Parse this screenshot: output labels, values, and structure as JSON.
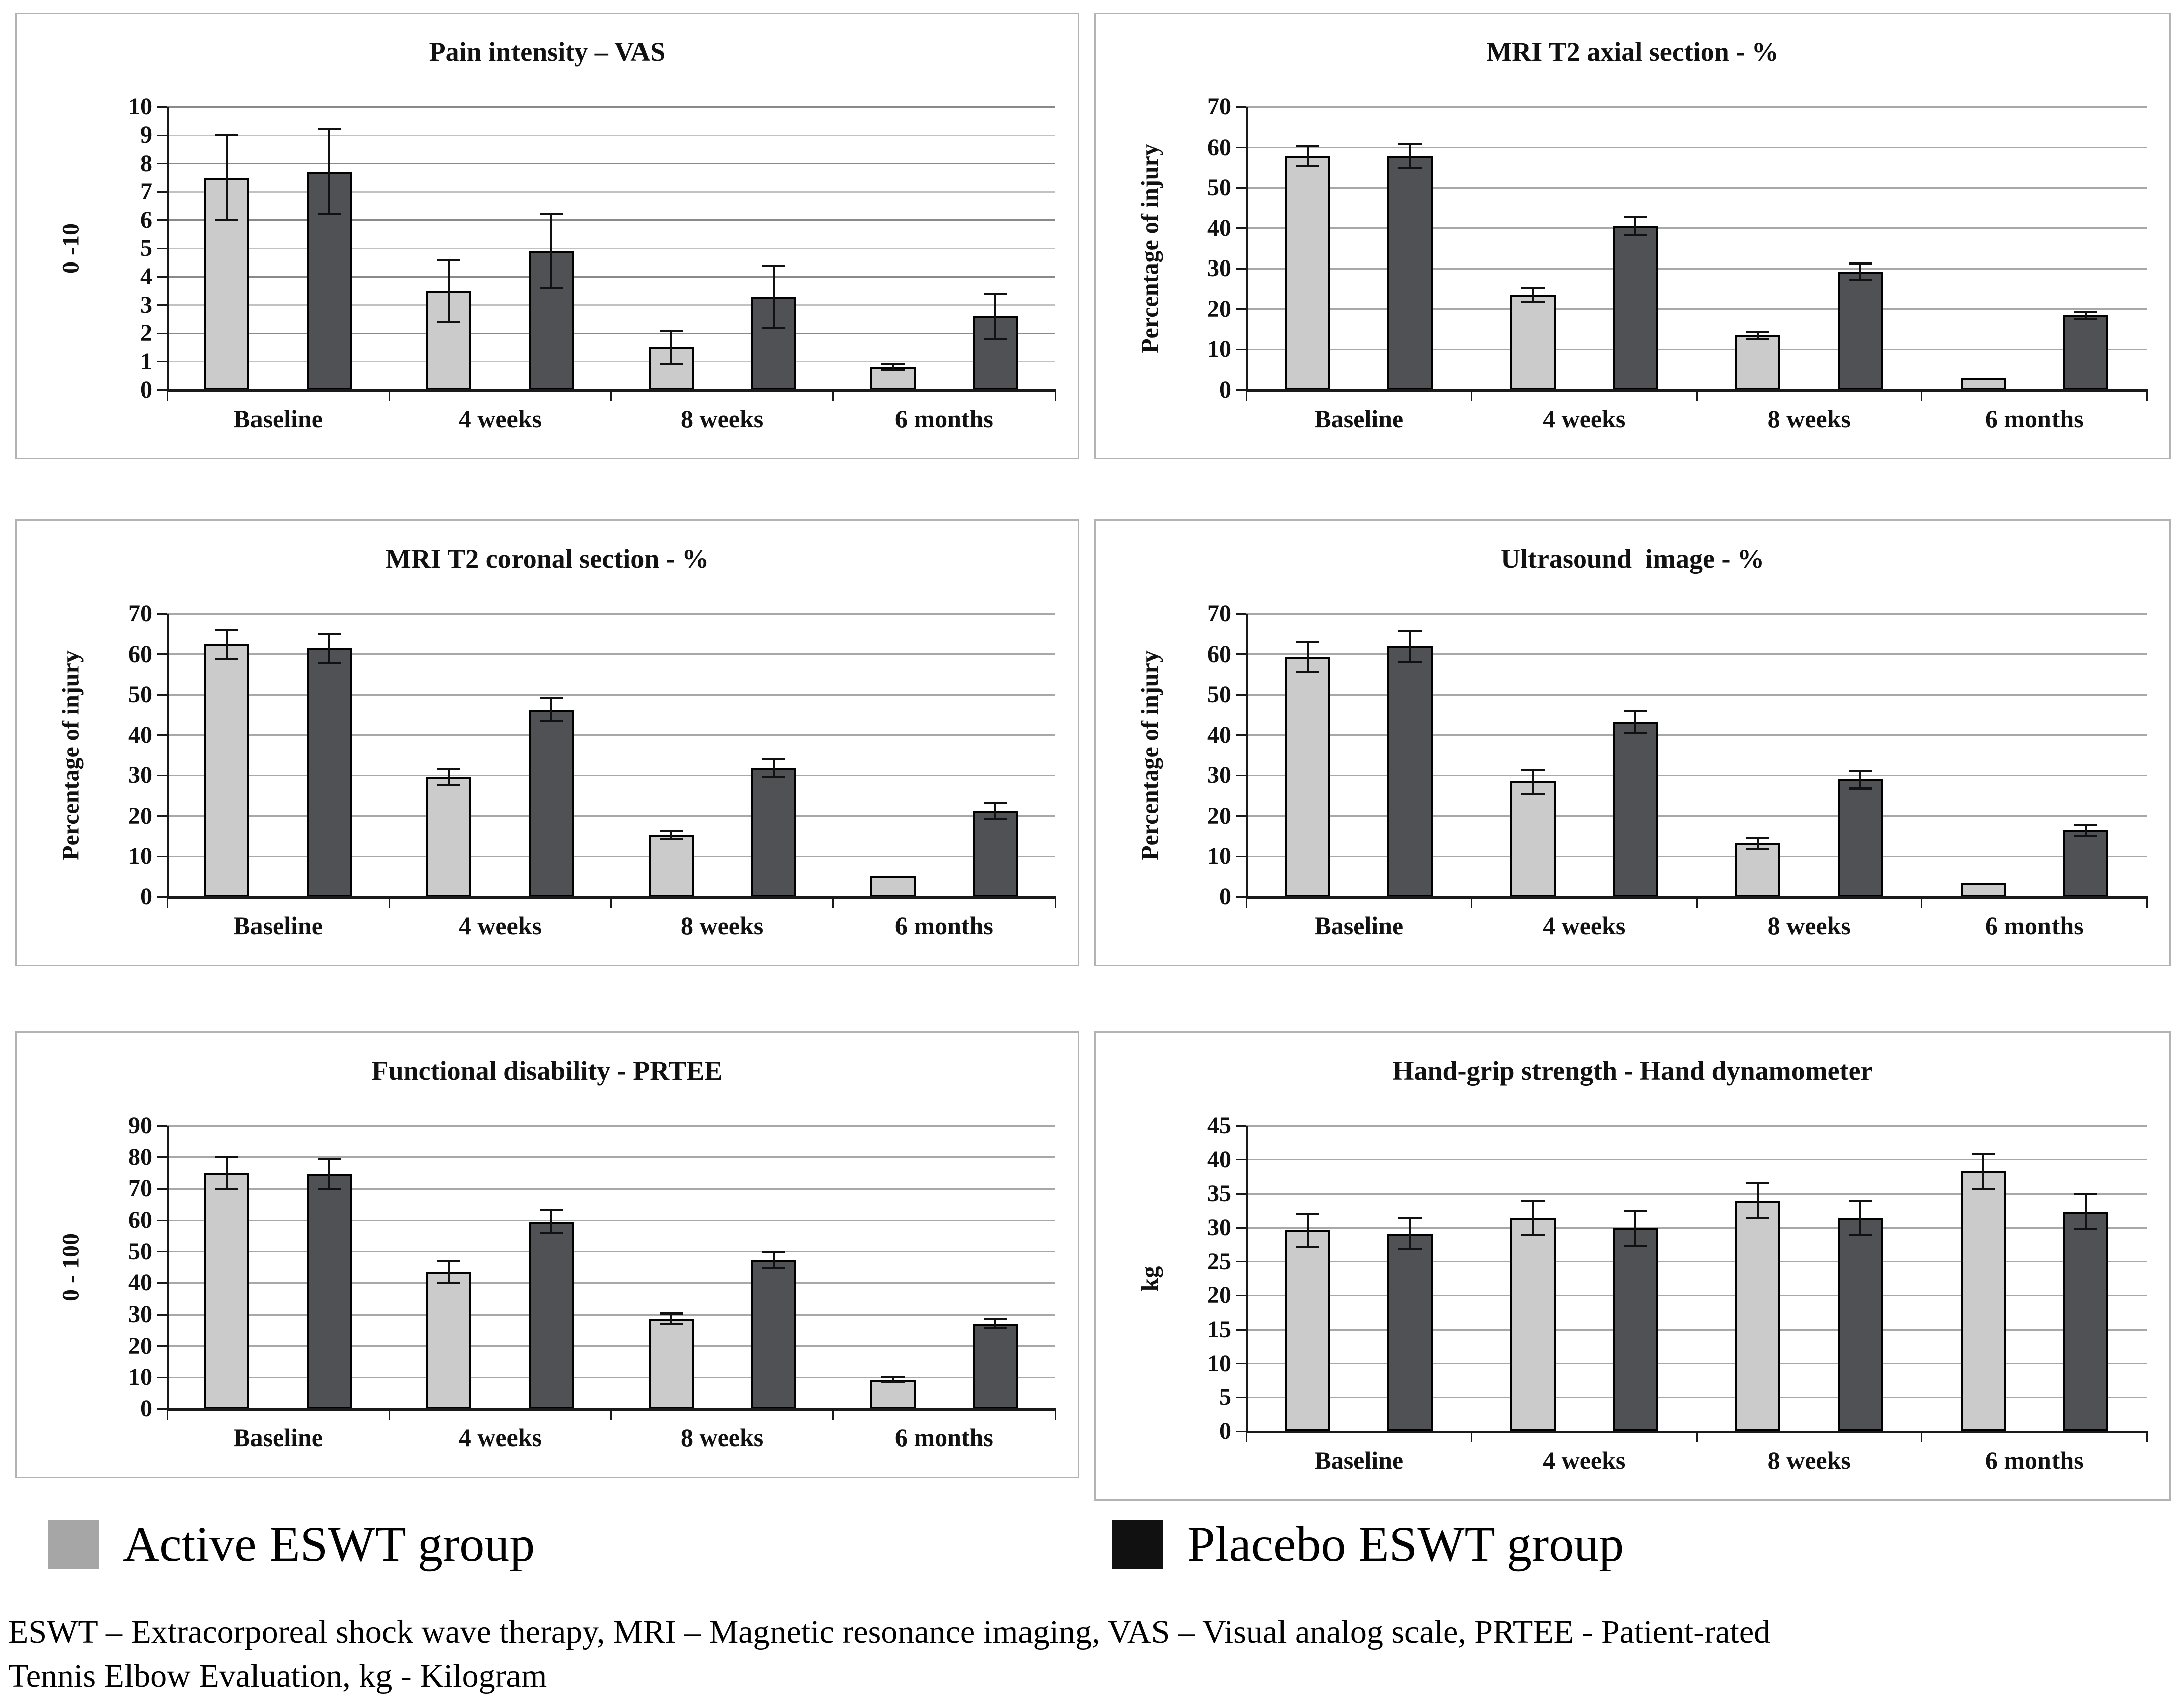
{
  "page": {
    "background": "#ffffff"
  },
  "series_colors": {
    "active": "#cbcbcb",
    "placebo": "#4f5154"
  },
  "grid_colors": {
    "dark": "#8a8a8a",
    "light": "#c2c2c2",
    "uniform": "#a8a8a8"
  },
  "legend": {
    "items": [
      {
        "key": "active",
        "label": "Active ESWT group",
        "swatch_color": "#a6a6a6"
      },
      {
        "key": "placebo",
        "label": "Placebo ESWT group",
        "swatch_color": "#111111"
      }
    ]
  },
  "footnote": {
    "line1": "ESWT – Extracorporeal shock wave therapy, MRI – Magnetic resonance imaging, VAS – Visual analog scale, PRTEE - Patient-rated",
    "line2": "Tennis Elbow Evaluation, kg - Kilogram"
  },
  "chart_data": [
    {
      "type": "bar",
      "title": "Pain intensity – VAS",
      "ylabel": "0 -10",
      "ylim": [
        0,
        10
      ],
      "ytick_step": 1,
      "yticks": [
        0,
        1,
        2,
        3,
        4,
        5,
        6,
        7,
        8,
        9,
        10
      ],
      "grid": true,
      "grid_alternating": true,
      "legend_position": "none",
      "categories": [
        "Baseline",
        "4 weeks",
        "8 weeks",
        "6 months"
      ],
      "series": [
        {
          "name": "Active ESWT group",
          "key": "active",
          "values": [
            7.5,
            3.5,
            1.5,
            0.8
          ],
          "errors": [
            1.5,
            1.1,
            0.6,
            0.1
          ]
        },
        {
          "name": "Placebo ESWT group",
          "key": "placebo",
          "values": [
            7.7,
            4.9,
            3.3,
            2.6
          ],
          "errors": [
            1.5,
            1.3,
            1.1,
            0.8
          ]
        }
      ]
    },
    {
      "type": "bar",
      "title": "MRI T2 axial section - %",
      "ylabel": "Percentage of injury",
      "ylim": [
        0,
        70
      ],
      "ytick_step": 10,
      "yticks": [
        0,
        10,
        20,
        30,
        40,
        50,
        60,
        70
      ],
      "grid": true,
      "grid_alternating": false,
      "legend_position": "none",
      "categories": [
        "Baseline",
        "4 weeks",
        "8 weeks",
        "6 months"
      ],
      "series": [
        {
          "name": "Active ESWT group",
          "key": "active",
          "values": [
            58,
            23.5,
            13.5,
            3
          ],
          "errors": [
            2.5,
            1.7,
            0.8,
            0
          ]
        },
        {
          "name": "Placebo ESWT group",
          "key": "placebo",
          "values": [
            58,
            40.5,
            29.3,
            18.5
          ],
          "errors": [
            3,
            2.2,
            2,
            0.9
          ]
        }
      ]
    },
    {
      "type": "bar",
      "title": "MRI T2 coronal section - %",
      "ylabel": "Percentage of injury",
      "ylim": [
        0,
        70
      ],
      "ytick_step": 10,
      "yticks": [
        0,
        10,
        20,
        30,
        40,
        50,
        60,
        70
      ],
      "grid": true,
      "grid_alternating": false,
      "legend_position": "none",
      "categories": [
        "Baseline",
        "4 weeks",
        "8 weeks",
        "6 months"
      ],
      "series": [
        {
          "name": "Active ESWT group",
          "key": "active",
          "values": [
            62.5,
            29.5,
            15.3,
            5.2
          ],
          "errors": [
            3.5,
            2,
            1,
            0
          ]
        },
        {
          "name": "Placebo ESWT group",
          "key": "placebo",
          "values": [
            61.5,
            46.3,
            31.8,
            21.2
          ],
          "errors": [
            3.5,
            2.9,
            2.2,
            2
          ]
        }
      ]
    },
    {
      "type": "bar",
      "title": "Ultrasound  image - %",
      "ylabel": "Percentage of injury",
      "ylim": [
        0,
        70
      ],
      "ytick_step": 10,
      "yticks": [
        0,
        10,
        20,
        30,
        40,
        50,
        60,
        70
      ],
      "grid": true,
      "grid_alternating": false,
      "legend_position": "none",
      "categories": [
        "Baseline",
        "4 weeks",
        "8 weeks",
        "6 months"
      ],
      "series": [
        {
          "name": "Active ESWT group",
          "key": "active",
          "values": [
            59.3,
            28.5,
            13.3,
            3.5
          ],
          "errors": [
            3.7,
            2.9,
            1.4,
            0
          ]
        },
        {
          "name": "Placebo ESWT group",
          "key": "placebo",
          "values": [
            62,
            43.3,
            29,
            16.5
          ],
          "errors": [
            3.8,
            2.8,
            2.2,
            1.4
          ]
        }
      ]
    },
    {
      "type": "bar",
      "title": "Functional disability - PRTEE",
      "ylabel": "0 - 100",
      "ylim": [
        0,
        90
      ],
      "ytick_step": 10,
      "yticks": [
        0,
        10,
        20,
        30,
        40,
        50,
        60,
        70,
        80,
        90
      ],
      "grid": true,
      "grid_alternating": false,
      "legend_position": "none",
      "categories": [
        "Baseline",
        "4 weeks",
        "8 weeks",
        "6 months"
      ],
      "series": [
        {
          "name": "Active ESWT group",
          "key": "active",
          "values": [
            75,
            43.5,
            28.7,
            9.2
          ],
          "errors": [
            4.9,
            3.4,
            1.6,
            0.8
          ]
        },
        {
          "name": "Placebo ESWT group",
          "key": "placebo",
          "values": [
            74.7,
            59.5,
            47.3,
            27.2
          ],
          "errors": [
            4.6,
            3.7,
            2.6,
            1.4
          ]
        }
      ]
    },
    {
      "type": "bar",
      "title": "Hand-grip strength - Hand dynamometer",
      "ylabel": "kg",
      "ylim": [
        0,
        45
      ],
      "ytick_step": 5,
      "yticks": [
        0,
        5,
        10,
        15,
        20,
        25,
        30,
        35,
        40,
        45
      ],
      "grid": true,
      "grid_alternating": false,
      "legend_position": "none",
      "categories": [
        "Baseline",
        "4 weeks",
        "8 weeks",
        "6 months"
      ],
      "series": [
        {
          "name": "Active ESWT group",
          "key": "active",
          "values": [
            29.6,
            31.4,
            34,
            38.3
          ],
          "errors": [
            2.4,
            2.5,
            2.6,
            2.5
          ]
        },
        {
          "name": "Placebo ESWT group",
          "key": "placebo",
          "values": [
            29.1,
            29.9,
            31.5,
            32.4
          ],
          "errors": [
            2.3,
            2.6,
            2.5,
            2.6
          ]
        }
      ]
    }
  ]
}
